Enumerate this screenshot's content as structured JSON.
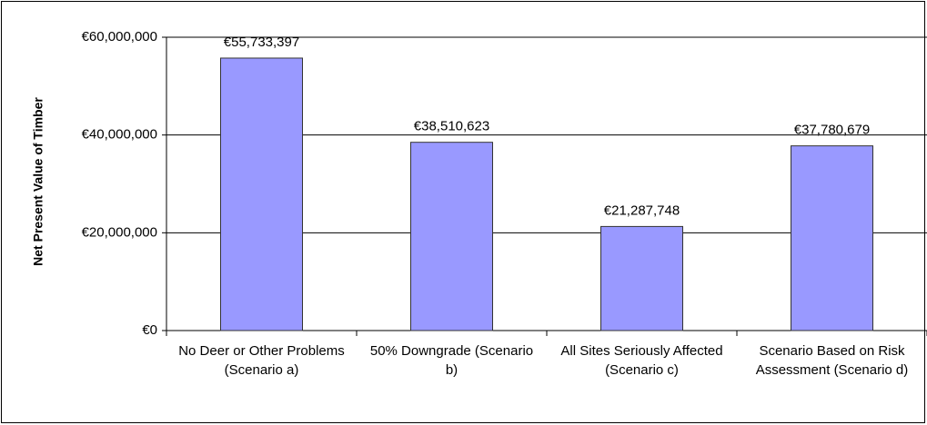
{
  "chart_data": {
    "type": "bar",
    "y_label": "Net Present Value of Timber",
    "categories": [
      "No Deer or Other Problems (Scenario a)",
      "50% Downgrade (Scenario b)",
      "All Sites Seriously Affected (Scenario c)",
      "Scenario Based on Risk Assessment (Scenario d)"
    ],
    "values": [
      55733397,
      38510623,
      21287748,
      37780679
    ],
    "value_labels": [
      "€55,733,397",
      "€38,510,623",
      "€21,287,748",
      "€37,780,679"
    ],
    "color": "#9999ff",
    "ylim": [
      0,
      60000000
    ],
    "yticks": [
      {
        "value": 0,
        "label": "€0"
      },
      {
        "value": 20000000,
        "label": "€20,000,000"
      },
      {
        "value": 40000000,
        "label": "€40,000,000"
      },
      {
        "value": 60000000,
        "label": "€60,000,000"
      }
    ],
    "grid": true
  }
}
